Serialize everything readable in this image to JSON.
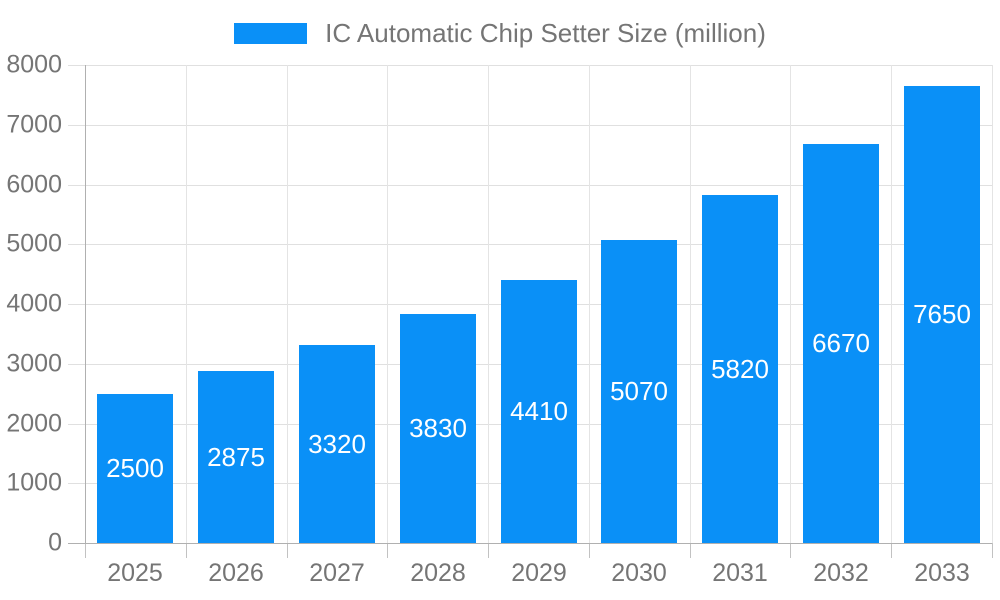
{
  "legend": {
    "label": "IC Automatic Chip Setter Size (million)"
  },
  "colors": {
    "bar": "#0a90f7",
    "grid": "#e0e0e0",
    "axis": "#b0b0b0",
    "tick": "#c2c2c2",
    "axis_label_text": "#757575",
    "value_label_text": "#ffffff",
    "background": "#ffffff"
  },
  "chart_data": {
    "type": "bar",
    "title": "IC Automatic Chip Setter Size (million)",
    "series_name": "IC Automatic Chip Setter Size (million)",
    "categories": [
      "2025",
      "2026",
      "2027",
      "2028",
      "2029",
      "2030",
      "2031",
      "2032",
      "2033"
    ],
    "values": [
      2500,
      2875,
      3320,
      3830,
      4410,
      5070,
      5820,
      6670,
      7650
    ],
    "value_labels_position": "inside-center",
    "xlabel": "",
    "ylabel": "",
    "ylim": [
      0,
      8000
    ],
    "ytick_step": 1000,
    "yticks": [
      0,
      1000,
      2000,
      3000,
      4000,
      5000,
      6000,
      7000,
      8000
    ],
    "grid": true,
    "legend_position": "top-center"
  }
}
